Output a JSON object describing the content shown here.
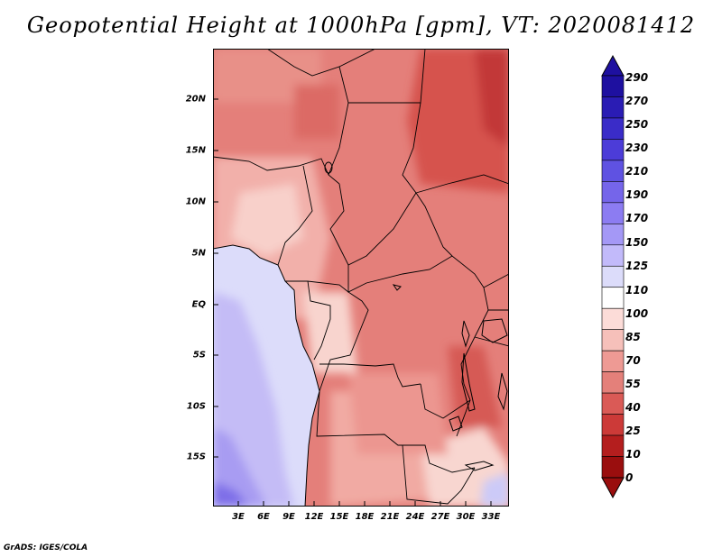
{
  "title": "Geopotential Height at 1000hPa [gpm], VT: 2020081412",
  "footer": "GrADS: IGES/COLA",
  "axes": {
    "lat_labels": [
      "20N",
      "15N",
      "10N",
      "5N",
      "EQ",
      "5S",
      "10S",
      "15S"
    ],
    "lon_labels": [
      "3E",
      "6E",
      "9E",
      "12E",
      "15E",
      "18E",
      "21E",
      "24E",
      "27E",
      "30E",
      "33E"
    ]
  },
  "colorbar": {
    "labels": [
      "290",
      "270",
      "250",
      "230",
      "210",
      "190",
      "170",
      "150",
      "125",
      "110",
      "100",
      "85",
      "70",
      "55",
      "40",
      "25",
      "10",
      "0"
    ],
    "colors": [
      "#1e10a0",
      "#2a1cb4",
      "#3a2cc8",
      "#4c3cd8",
      "#5f52e2",
      "#7565ea",
      "#8c7cf2",
      "#a498f6",
      "#c2bafa",
      "#dcdcfa",
      "#ffffff",
      "#fcdcd8",
      "#f6c0ba",
      "#ee9a94",
      "#e4807a",
      "#da5a56",
      "#cc3a38",
      "#b41e1e",
      "#9a0e0e"
    ]
  },
  "map": {
    "region": "Central Africa",
    "lat_range": [
      -18,
      24
    ],
    "lon_range": [
      0,
      35
    ]
  }
}
